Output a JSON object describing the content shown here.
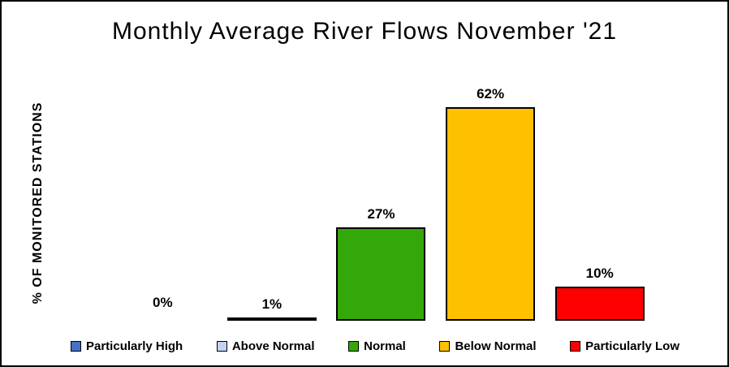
{
  "figure": {
    "title": "Monthly Average River Flows November '21",
    "y_axis_label": "% OF MONITORED STATIONS",
    "background": "#FFFFFF",
    "border_color": "#000000"
  },
  "chart_data": {
    "type": "bar",
    "title": "Monthly Average River Flows November '21",
    "xlabel": "",
    "ylabel": "% OF MONITORED STATIONS",
    "categories": [
      "Particularly High",
      "Above Normal",
      "Normal",
      "Below Normal",
      "Particularly Low"
    ],
    "values": [
      0,
      1,
      27,
      62,
      10
    ],
    "data_labels": [
      "0%",
      "1%",
      "27%",
      "62%",
      "10%"
    ],
    "bar_colors": [
      "#4472C4",
      "#C5D3F0",
      "#34A80A",
      "#FFC000",
      "#FF0000"
    ],
    "bar_border_color": "#000000",
    "ylim": [
      0,
      70
    ],
    "grid": false,
    "axis_lines": "none",
    "legend_position": "bottom"
  },
  "legend": {
    "items": [
      {
        "label": "Particularly High",
        "color": "#4472C4"
      },
      {
        "label": "Above Normal",
        "color": "#C5D3F0"
      },
      {
        "label": "Normal",
        "color": "#34A80A"
      },
      {
        "label": "Below Normal",
        "color": "#FFC000"
      },
      {
        "label": "Particularly Low",
        "color": "#FF0000"
      }
    ]
  }
}
